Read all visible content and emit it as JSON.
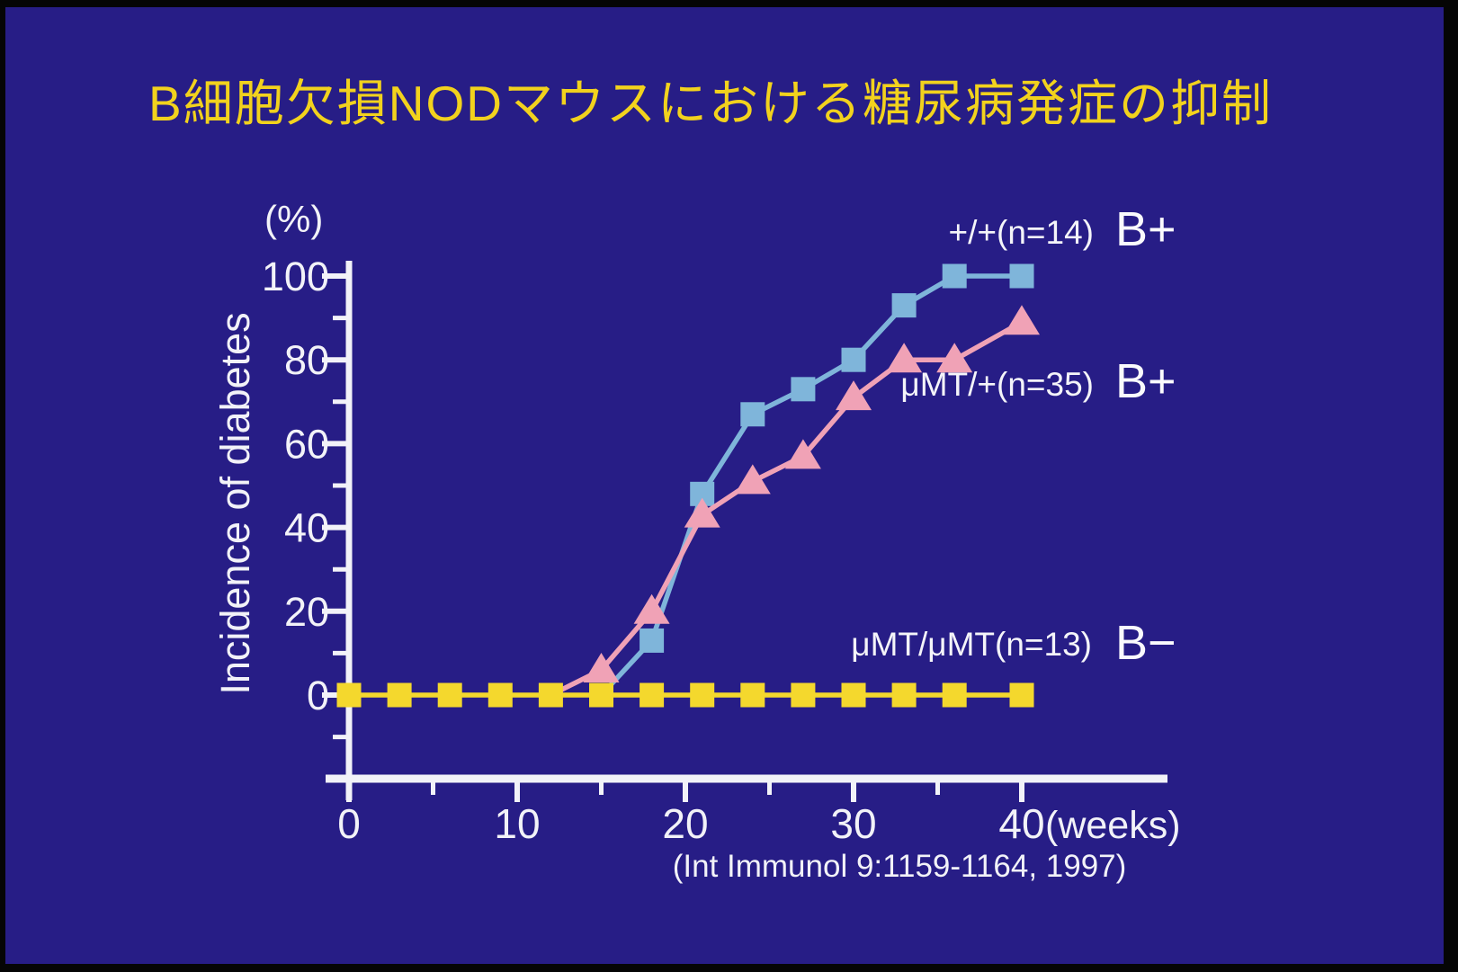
{
  "slide": {
    "title": "B細胞欠損NODマウスにおける糖尿病発症の抑制",
    "citation": "(Int Immunol 9:1159-1164, 1997)"
  },
  "colors": {
    "background": "#271d86",
    "frame": "#050505",
    "title_text": "#f2d21d",
    "axis": "#f2f2f8",
    "series_wildtype": "#7fb5da",
    "series_heterozygous": "#f0a2b6",
    "series_knockout": "#f4d82d"
  },
  "chart_data": {
    "type": "line",
    "title": "",
    "xlabel": "(weeks)",
    "ylabel": "Incidence of diabetes",
    "y_unit_label": "(%)",
    "xlim": [
      0,
      48
    ],
    "ylim": [
      -20,
      104
    ],
    "x_ticks": [
      0,
      10,
      20,
      30,
      40
    ],
    "x_minor_ticks": [
      5,
      15,
      25,
      35
    ],
    "y_ticks": [
      0,
      20,
      40,
      60,
      80,
      100
    ],
    "y_minor_ticks": [
      -10,
      10,
      30,
      50,
      70,
      90
    ],
    "grid": false,
    "legend_position": "right-of-lines",
    "series": [
      {
        "name": "+/+(n=14)",
        "group": "B+",
        "marker": "square",
        "color": "#7fb5da",
        "hide_zero_markers": true,
        "x": [
          15,
          18,
          21,
          24,
          27,
          30,
          33,
          36,
          40
        ],
        "y": [
          0,
          13,
          48,
          67,
          73,
          80,
          93,
          100,
          100
        ]
      },
      {
        "name": "μMT/+(n=35)",
        "group": "B+",
        "marker": "triangle",
        "color": "#f0a2b6",
        "hide_zero_markers": true,
        "x": [
          12,
          15,
          18,
          21,
          24,
          27,
          30,
          33,
          36,
          40
        ],
        "y": [
          0,
          6,
          20,
          43,
          51,
          57,
          71,
          80,
          80,
          89
        ]
      },
      {
        "name": "μMT/μMT(n=13)",
        "group": "B−",
        "marker": "square",
        "color": "#f4d82d",
        "hide_zero_markers": false,
        "x": [
          0,
          3,
          6,
          9,
          12,
          15,
          18,
          21,
          24,
          27,
          30,
          33,
          36,
          40
        ],
        "y": [
          0,
          0,
          0,
          0,
          0,
          0,
          0,
          0,
          0,
          0,
          0,
          0,
          0,
          0
        ]
      }
    ],
    "legend": [
      {
        "label": "+/+(n=14)",
        "tag": "B+"
      },
      {
        "label": "μMT/+(n=35)",
        "tag": "B+"
      },
      {
        "label": "μMT/μMT(n=13)",
        "tag": "B−"
      }
    ]
  }
}
